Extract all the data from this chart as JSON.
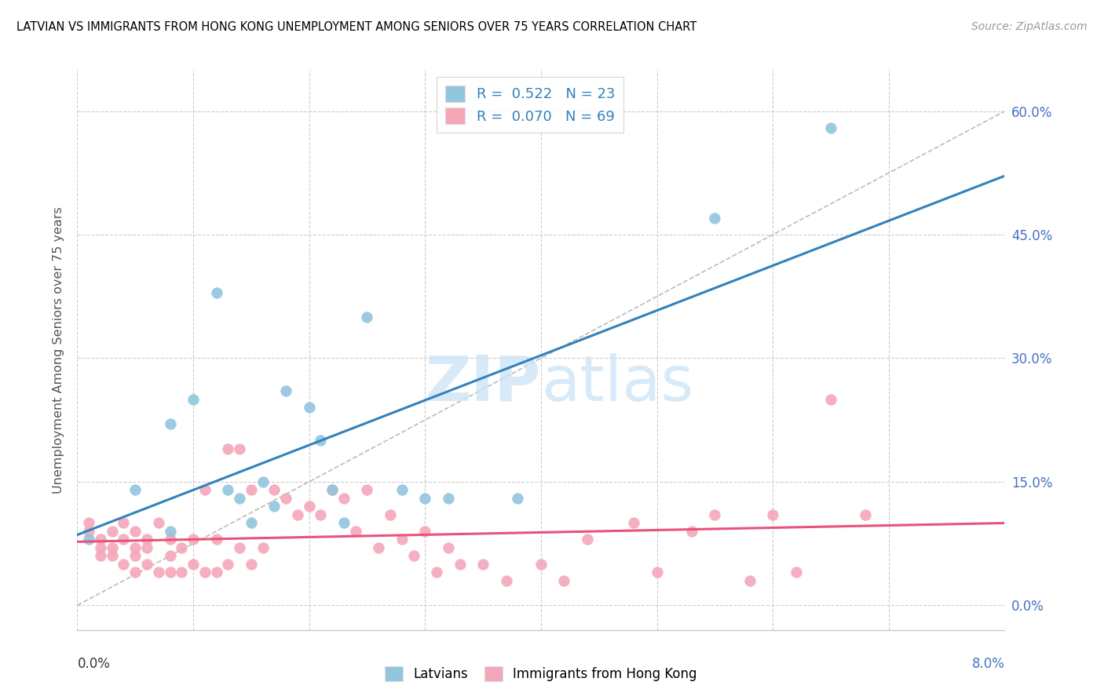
{
  "title": "LATVIAN VS IMMIGRANTS FROM HONG KONG UNEMPLOYMENT AMONG SENIORS OVER 75 YEARS CORRELATION CHART",
  "source": "Source: ZipAtlas.com",
  "ylabel": "Unemployment Among Seniors over 75 years",
  "yticks": [
    "0.0%",
    "15.0%",
    "30.0%",
    "45.0%",
    "60.0%"
  ],
  "ytick_vals": [
    0.0,
    15.0,
    30.0,
    45.0,
    60.0
  ],
  "xlim": [
    0.0,
    8.0
  ],
  "ylim": [
    -3.0,
    65.0
  ],
  "latvian_color": "#92c5de",
  "hk_color": "#f4a7b9",
  "latvian_R": 0.522,
  "latvian_N": 23,
  "hk_R": 0.07,
  "hk_N": 69,
  "latvian_trend_color": "#3182bd",
  "hk_trend_color": "#e8537a",
  "diagonal_color": "#bbbbbb",
  "legend_R_color": "#3182bd",
  "latvian_x": [
    0.1,
    0.5,
    0.8,
    0.8,
    1.0,
    1.2,
    1.3,
    1.4,
    1.5,
    1.6,
    1.7,
    1.8,
    2.0,
    2.1,
    2.2,
    2.3,
    2.5,
    2.8,
    3.0,
    3.2,
    3.8,
    5.5,
    6.5
  ],
  "latvian_y": [
    8.0,
    14.0,
    9.0,
    22.0,
    25.0,
    38.0,
    14.0,
    13.0,
    10.0,
    15.0,
    12.0,
    26.0,
    24.0,
    20.0,
    14.0,
    10.0,
    35.0,
    14.0,
    13.0,
    13.0,
    13.0,
    47.0,
    58.0
  ],
  "hk_x": [
    0.1,
    0.1,
    0.2,
    0.2,
    0.2,
    0.3,
    0.3,
    0.3,
    0.4,
    0.4,
    0.4,
    0.5,
    0.5,
    0.5,
    0.5,
    0.6,
    0.6,
    0.6,
    0.7,
    0.7,
    0.8,
    0.8,
    0.8,
    0.9,
    0.9,
    1.0,
    1.0,
    1.1,
    1.1,
    1.2,
    1.2,
    1.3,
    1.3,
    1.4,
    1.4,
    1.5,
    1.5,
    1.6,
    1.7,
    1.8,
    1.9,
    2.0,
    2.1,
    2.2,
    2.3,
    2.4,
    2.5,
    2.6,
    2.7,
    2.8,
    2.9,
    3.0,
    3.1,
    3.2,
    3.3,
    3.5,
    3.7,
    4.0,
    4.2,
    4.4,
    4.8,
    5.0,
    5.3,
    5.5,
    5.8,
    6.0,
    6.2,
    6.5,
    6.8
  ],
  "hk_y": [
    9.0,
    10.0,
    6.0,
    7.0,
    8.0,
    6.0,
    7.0,
    9.0,
    5.0,
    8.0,
    10.0,
    4.0,
    6.0,
    7.0,
    9.0,
    5.0,
    7.0,
    8.0,
    4.0,
    10.0,
    4.0,
    6.0,
    8.0,
    4.0,
    7.0,
    5.0,
    8.0,
    4.0,
    14.0,
    4.0,
    8.0,
    5.0,
    19.0,
    7.0,
    19.0,
    5.0,
    14.0,
    7.0,
    14.0,
    13.0,
    11.0,
    12.0,
    11.0,
    14.0,
    13.0,
    9.0,
    14.0,
    7.0,
    11.0,
    8.0,
    6.0,
    9.0,
    4.0,
    7.0,
    5.0,
    5.0,
    3.0,
    5.0,
    3.0,
    8.0,
    10.0,
    4.0,
    9.0,
    11.0,
    3.0,
    11.0,
    4.0,
    25.0,
    11.0
  ]
}
